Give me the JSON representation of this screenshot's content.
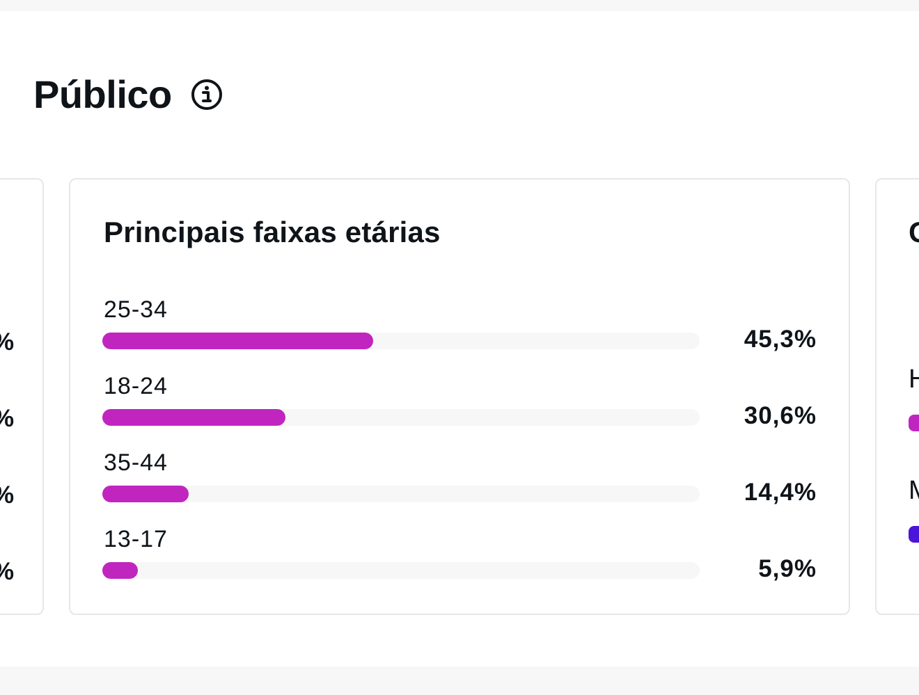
{
  "section": {
    "title": "Público",
    "info_icon": "info-circle-icon"
  },
  "left_card": {
    "values": [
      "%",
      "%",
      "%",
      "%"
    ]
  },
  "age_card": {
    "title": "Principais faixas etárias",
    "bar_color": "#c026bf",
    "track_color": "#f7f7f8",
    "chart_data": {
      "type": "bar",
      "orientation": "horizontal",
      "categories": [
        "25-34",
        "18-24",
        "35-44",
        "13-17"
      ],
      "values": [
        45.3,
        30.6,
        14.4,
        5.9
      ],
      "value_labels": [
        "45,3%",
        "30,6%",
        "14,4%",
        "5,9%"
      ],
      "xlim": [
        0,
        100
      ]
    }
  },
  "right_card": {
    "title_fragment": "G",
    "items": [
      {
        "label_fragment": "H",
        "color": "#c026bf"
      },
      {
        "label_fragment": "M",
        "color": "#4b14d9"
      }
    ]
  }
}
